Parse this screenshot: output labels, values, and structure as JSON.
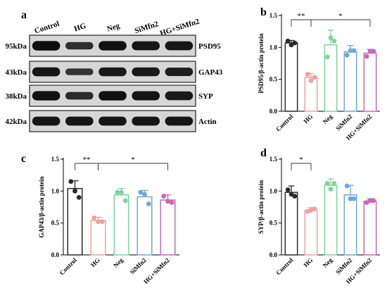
{
  "colors": {
    "Control": "#2b2b2b",
    "HG": "#f2a0a0",
    "Neg": "#7fd39a",
    "SiMfn2": "#6ea8d8",
    "HG+SiMfn2": "#c868b8"
  },
  "blot": {
    "panel_letter": "a",
    "lanes": [
      "Control",
      "HG",
      "Neg",
      "SiMfn2",
      "HG+SiMfn2"
    ],
    "rows": [
      {
        "size": "95kDa",
        "protein": "PSD95",
        "intensity": [
          0.95,
          0.55,
          0.92,
          0.85,
          0.85
        ]
      },
      {
        "size": "43kDa",
        "protein": "GAP43",
        "intensity": [
          0.85,
          0.45,
          0.8,
          0.8,
          0.75
        ]
      },
      {
        "size": "38kDa",
        "protein": "SYP",
        "intensity": [
          0.9,
          0.6,
          0.92,
          0.88,
          0.8
        ]
      },
      {
        "size": "42kDa",
        "protein": "Actin",
        "intensity": [
          0.85,
          0.85,
          0.85,
          0.85,
          0.85
        ]
      }
    ]
  },
  "chart_data": [
    {
      "panel": "b",
      "type": "bar",
      "ylabel": "PSD95/β-actin protein",
      "categories": [
        "Control",
        "HG",
        "Neg",
        "SiMfn2",
        "HG+SiMfn2"
      ],
      "yticks": [
        "0.0",
        "0.5",
        "1.0",
        "1.5"
      ],
      "ylim": [
        0,
        1.5
      ],
      "values": [
        1.07,
        0.53,
        1.04,
        0.93,
        0.91
      ],
      "errors": [
        0.04,
        0.06,
        0.23,
        0.1,
        0.06
      ],
      "points": [
        [
          1.1,
          1.04,
          1.07
        ],
        [
          0.58,
          0.48,
          0.53
        ],
        [
          0.85,
          1.15,
          1.1
        ],
        [
          0.88,
          0.95,
          0.95
        ],
        [
          0.86,
          0.94,
          0.94
        ]
      ],
      "significance": [
        {
          "from": 0,
          "to": 1,
          "label": "**"
        },
        {
          "from": 1,
          "to": 4,
          "label": "*"
        }
      ]
    },
    {
      "panel": "c",
      "type": "bar",
      "ylabel": "GAP43/β-actin protein",
      "categories": [
        "Control",
        "HG",
        "Neg",
        "SiMfn2",
        "HG+SiMfn2"
      ],
      "yticks": [
        "0.0",
        "0.5",
        "1.0",
        "1.5"
      ],
      "ylim": [
        0,
        1.5
      ],
      "values": [
        1.04,
        0.54,
        0.94,
        0.91,
        0.86
      ],
      "errors": [
        0.12,
        0.05,
        0.1,
        0.1,
        0.08
      ],
      "points": [
        [
          1.15,
          1.0,
          0.9
        ],
        [
          0.58,
          0.52,
          0.52
        ],
        [
          0.98,
          0.98,
          0.85
        ],
        [
          0.98,
          0.95,
          0.8
        ],
        [
          0.92,
          0.84,
          0.82
        ]
      ],
      "significance": [
        {
          "from": 0,
          "to": 1,
          "label": "**"
        },
        {
          "from": 1,
          "to": 4,
          "label": "*"
        }
      ]
    },
    {
      "panel": "d",
      "type": "bar",
      "ylabel": "SYP/β-actin protein",
      "categories": [
        "Control",
        "HG",
        "Neg",
        "SiMfn2",
        "HG+SiMfn2"
      ],
      "yticks": [
        "0.0",
        "0.5",
        "1.0",
        "1.5"
      ],
      "ylim": [
        0,
        1.5
      ],
      "values": [
        0.98,
        0.7,
        1.09,
        0.94,
        0.84
      ],
      "errors": [
        0.1,
        0.04,
        0.1,
        0.15,
        0.04
      ],
      "points": [
        [
          1.02,
          0.95,
          0.92
        ],
        [
          0.68,
          0.7,
          0.72
        ],
        [
          1.12,
          1.03,
          1.12
        ],
        [
          1.08,
          0.88,
          0.88
        ],
        [
          0.82,
          0.85,
          0.85
        ]
      ],
      "significance": [
        {
          "from": 0,
          "to": 1,
          "label": "*"
        }
      ]
    }
  ]
}
